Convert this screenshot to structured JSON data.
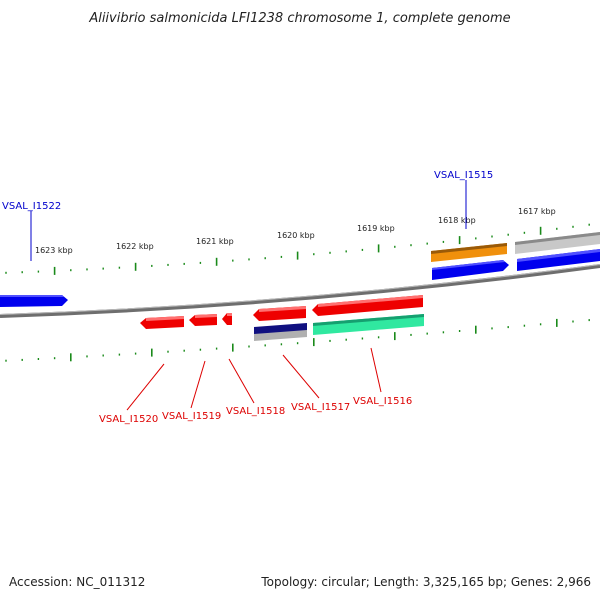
{
  "title": "Aliivibrio salmonicida LFI1238 chromosome 1, complete genome",
  "footer": {
    "accession": "Accession: NC_011312",
    "summary": "Topology: circular; Length: 3,325,165 bp; Genes: 2,966"
  },
  "colors": {
    "background": "#ffffff",
    "backbone": "#808080",
    "tick": "#1a8a1a",
    "forward_label": "#0000cc",
    "reverse_label": "#dd0000",
    "red_gene": "#ee0000",
    "blue_gene": "#0000ee",
    "orange_gene": "#f0900c",
    "grey_gene": "#c8c8c8",
    "green_gene": "#30e8a0",
    "navy_gene": "#101080"
  },
  "kbp_labels": [
    "1623 kbp",
    "1622 kbp",
    "1621 kbp",
    "1620 kbp",
    "1619 kbp",
    "1618 kbp",
    "1617 kbp"
  ],
  "gene_labels": {
    "forward": [
      "VSAL_I1522",
      "VSAL_I1515"
    ],
    "reverse": [
      "VSAL_I1520",
      "VSAL_I1519",
      "VSAL_I1518",
      "VSAL_I1517",
      "VSAL_I1516"
    ]
  }
}
